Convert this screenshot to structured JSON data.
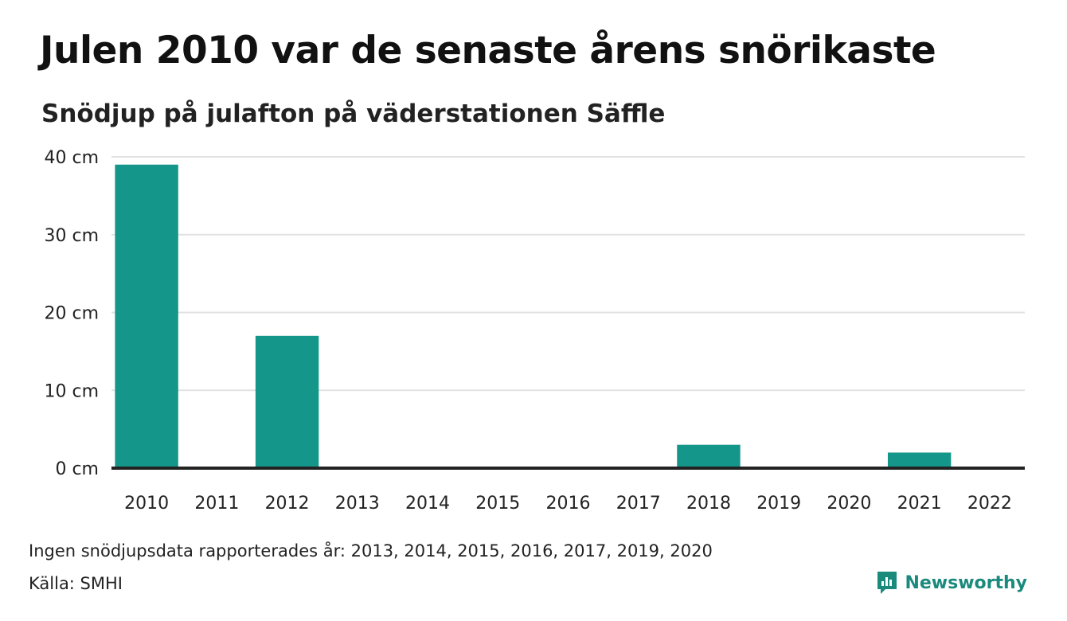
{
  "title": "Julen 2010 var de senaste årens snörikaste",
  "subtitle": "Snödjup på julafton på väderstationen Säffle",
  "note": "Ingen snödjupsdata rapporterades år: 2013, 2014, 2015, 2016, 2017, 2019, 2020",
  "source": "Källa: SMHI",
  "brand": {
    "name": "Newsworthy",
    "icon": "newsworthy-logo-icon",
    "color": "#1a8a7d"
  },
  "chart_data": {
    "type": "bar",
    "categories": [
      "2010",
      "2011",
      "2012",
      "2013",
      "2014",
      "2015",
      "2016",
      "2017",
      "2018",
      "2019",
      "2020",
      "2021",
      "2022"
    ],
    "values": [
      39,
      0,
      17,
      null,
      null,
      null,
      null,
      null,
      3,
      null,
      null,
      2,
      0
    ],
    "y_ticks": [
      0,
      10,
      20,
      30,
      40
    ],
    "y_tick_labels": [
      "0 cm",
      "10 cm",
      "20 cm",
      "30 cm",
      "40 cm"
    ],
    "ylim": [
      0,
      40
    ],
    "bar_color": "#14968a",
    "grid": true,
    "legend": "none"
  }
}
